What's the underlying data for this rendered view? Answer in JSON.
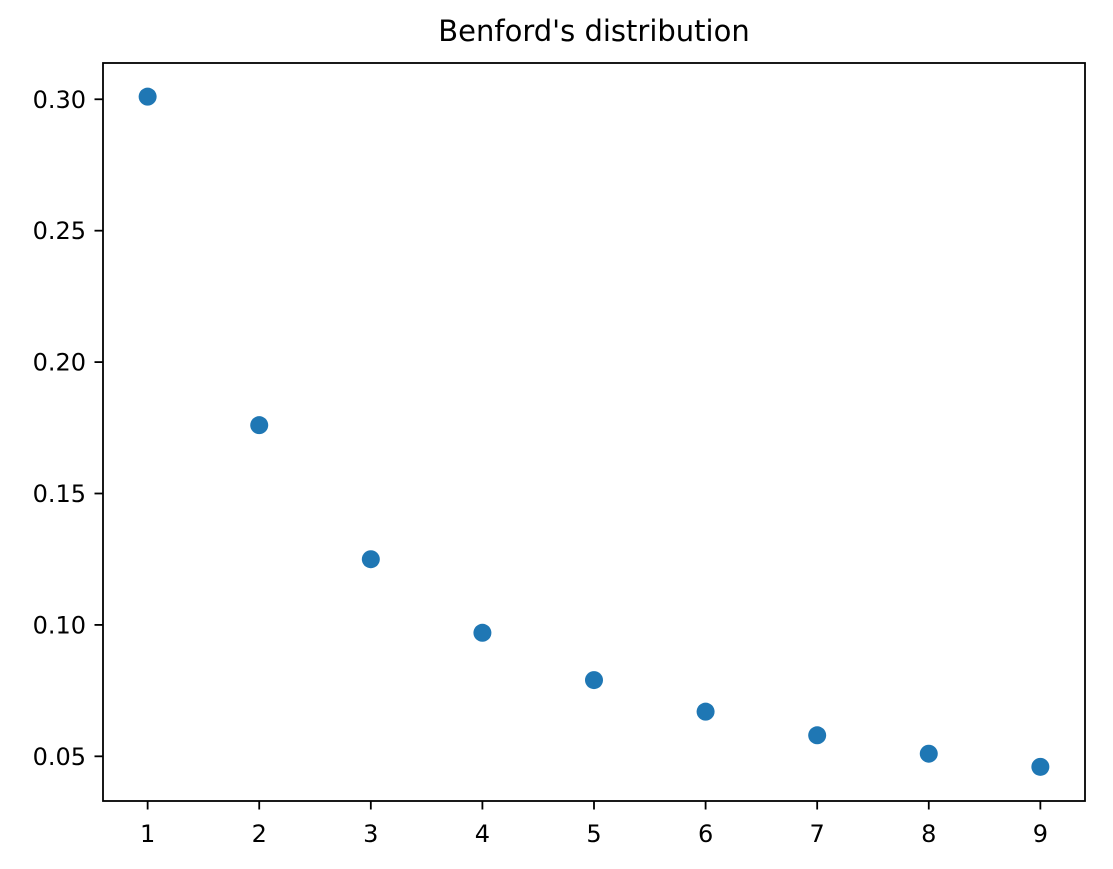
{
  "figure": {
    "background_color": "#ffffff"
  },
  "chart_data": {
    "type": "scatter",
    "title": "Benford's distribution",
    "xlabel": "",
    "ylabel": "",
    "x": [
      1,
      2,
      3,
      4,
      5,
      6,
      7,
      8,
      9
    ],
    "y": [
      0.301,
      0.176,
      0.125,
      0.097,
      0.079,
      0.067,
      0.058,
      0.051,
      0.046
    ],
    "xlim": [
      0.6,
      9.4
    ],
    "ylim": [
      0.033,
      0.3138
    ],
    "x_ticks": [
      1,
      2,
      3,
      4,
      5,
      6,
      7,
      8,
      9
    ],
    "x_tick_labels": [
      "1",
      "2",
      "3",
      "4",
      "5",
      "6",
      "7",
      "8",
      "9"
    ],
    "y_ticks": [
      0.05,
      0.1,
      0.15,
      0.2,
      0.25,
      0.3
    ],
    "y_tick_labels": [
      "0.05",
      "0.10",
      "0.15",
      "0.20",
      "0.25",
      "0.30"
    ],
    "grid": false,
    "legend": null,
    "marker_color": "#1f77b4",
    "marker_radius_px": 9,
    "axis_color": "#000000"
  }
}
